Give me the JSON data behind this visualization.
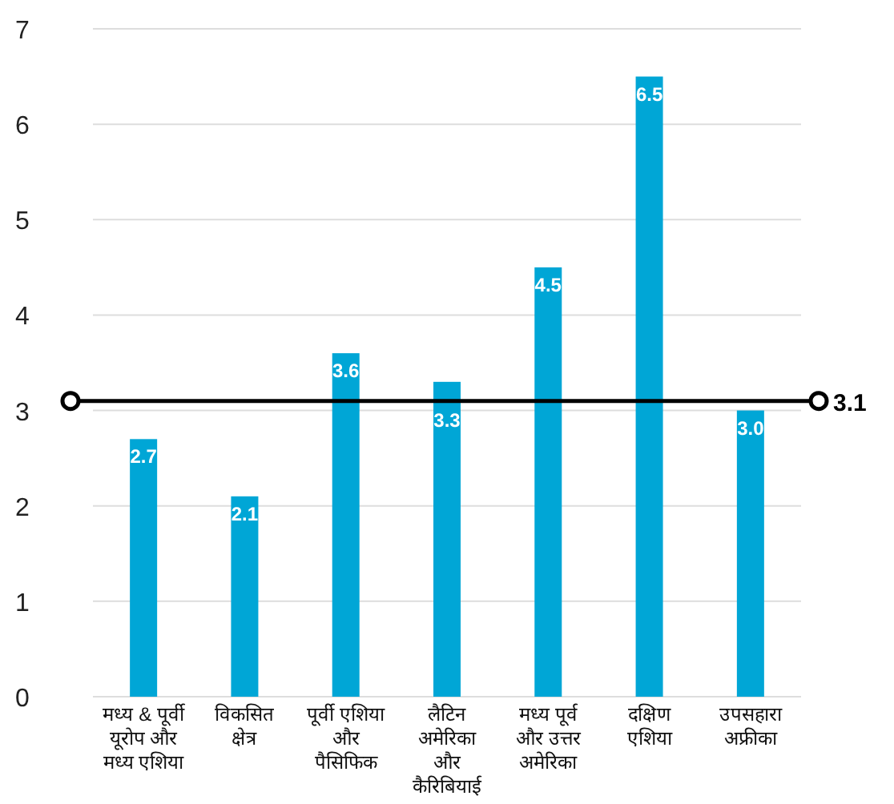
{
  "chart_data": {
    "type": "bar",
    "categories": [
      "मध्य & पूर्वी यूरोप और मध्य एशिया",
      "विकसित क्षेत्र",
      "पूर्वी एशिया और पैसिफिक",
      "लैटिन अमेरिका और कैरिबियाई",
      "मध्य पूर्व और उत्तर अमेरिका",
      "दक्षिण एशिया",
      "उपसहारा अफ्रीका"
    ],
    "values": [
      2.7,
      2.1,
      3.6,
      3.3,
      4.5,
      6.5,
      3.0
    ],
    "color": "#00a6d6",
    "value_labels": [
      "2.7",
      "2.1",
      "3.6",
      "3.3",
      "4.5",
      "6.5",
      "3.0"
    ],
    "ylim": [
      0,
      7
    ],
    "yticks": [
      0,
      1,
      2,
      3,
      4,
      5,
      6,
      7
    ],
    "grid": "y",
    "ref_lines": [
      {
        "axis": "y",
        "value": 3.1,
        "label": "3.1",
        "color": "#000000"
      }
    ]
  }
}
